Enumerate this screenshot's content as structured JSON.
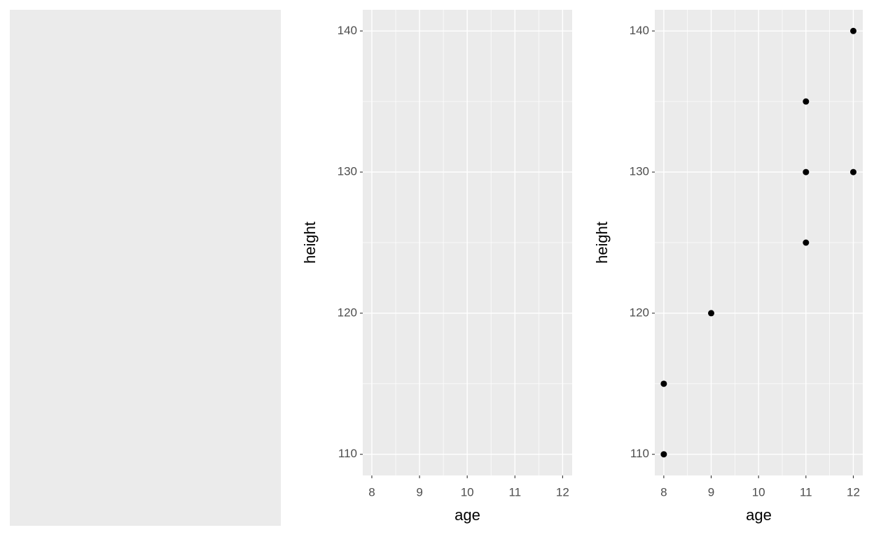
{
  "chart_data": [
    {
      "type": "blank"
    },
    {
      "type": "scatter",
      "x_label": "age",
      "y_label": "height",
      "x": [],
      "y": [],
      "color": "#000000",
      "xlim": [
        7.81,
        12.2
      ],
      "ylim": [
        108.5,
        141.5
      ],
      "xticks": [
        8,
        9,
        10,
        11,
        12
      ],
      "yticks": [
        110,
        120,
        130,
        140
      ],
      "grid": true
    },
    {
      "type": "scatter",
      "x_label": "age",
      "y_label": "height",
      "x": [
        8,
        8,
        9,
        11,
        11,
        11,
        12,
        12
      ],
      "y": [
        110,
        115,
        120,
        125,
        130,
        135,
        130,
        140
      ],
      "color": "#000000",
      "xlim": [
        7.81,
        12.2
      ],
      "ylim": [
        108.5,
        141.5
      ],
      "xticks": [
        8,
        9,
        10,
        11,
        12
      ],
      "yticks": [
        110,
        120,
        130,
        140
      ],
      "grid": true
    }
  ]
}
